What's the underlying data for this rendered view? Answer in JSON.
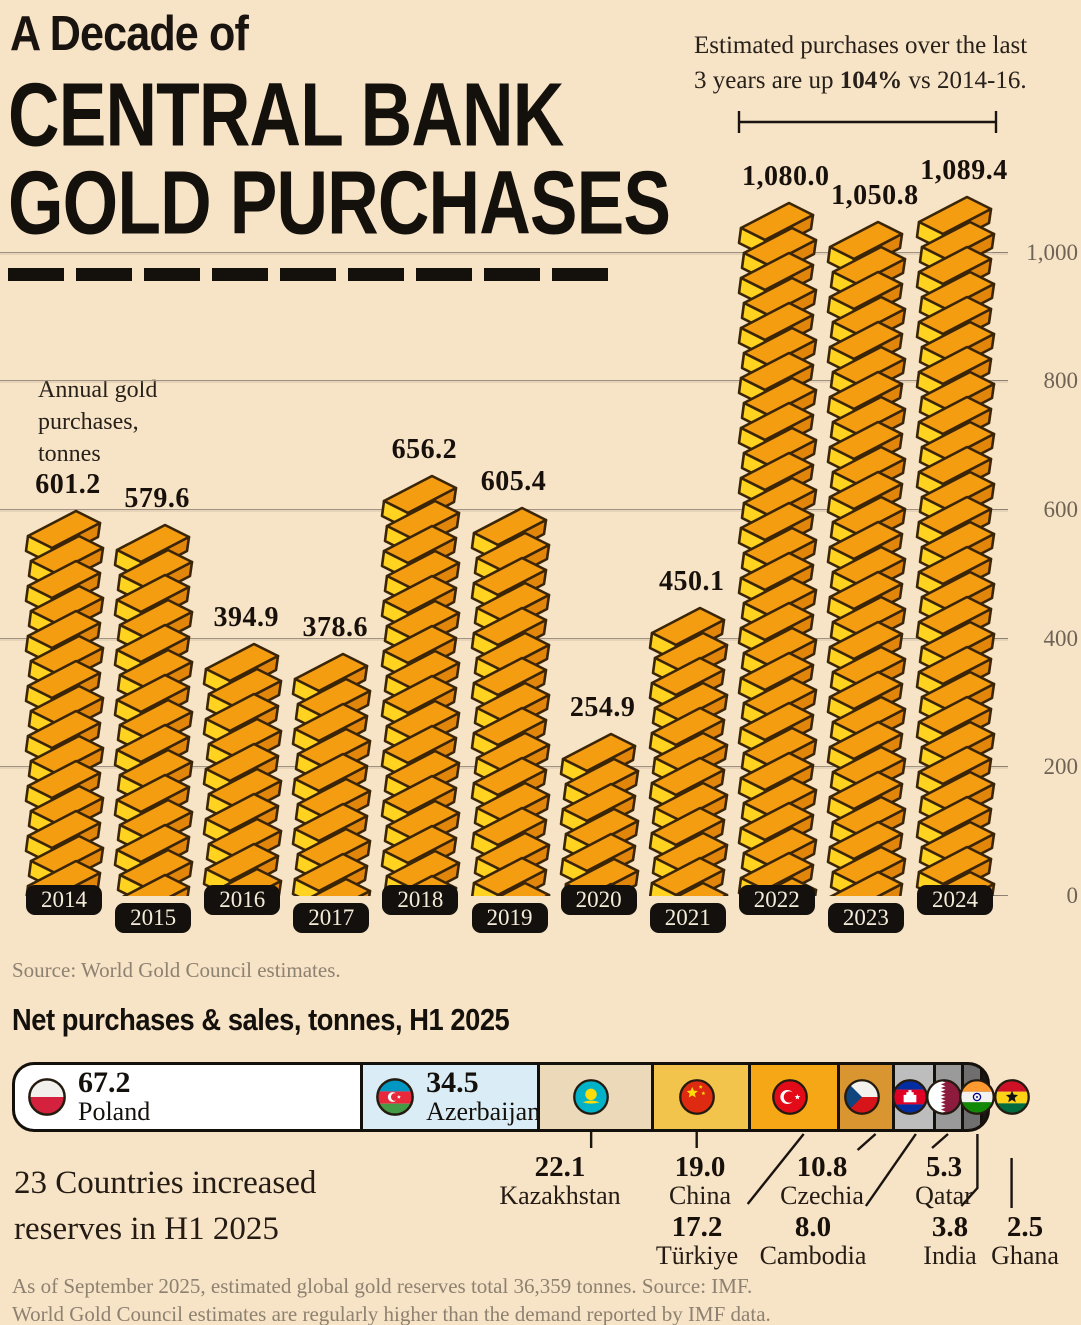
{
  "header": {
    "kicker": "A Decade of",
    "title_line1": "CENTRAL BANK",
    "title_line2": "GOLD PURCHASES"
  },
  "chart_data": [
    {
      "id": "annual-gold-purchases",
      "type": "bar",
      "title": "A Decade of Central Bank Gold Purchases",
      "ylabel": "Annual gold purchases, tonnes",
      "ylabel_lines": [
        "Annual gold",
        "purchases,",
        "tonnes"
      ],
      "xlabel": "",
      "categories": [
        "2014",
        "2015",
        "2016",
        "2017",
        "2018",
        "2019",
        "2020",
        "2021",
        "2022",
        "2023",
        "2024"
      ],
      "values": [
        601.2,
        579.6,
        394.9,
        378.6,
        656.2,
        605.4,
        254.9,
        450.1,
        1080.0,
        1050.8,
        1089.4
      ],
      "value_labels": [
        "601.2",
        "579.6",
        "394.9",
        "378.6",
        "656.2",
        "605.4",
        "254.9",
        "450.1",
        "1,080.0",
        "1,050.8",
        "1,089.4"
      ],
      "ytick_labels": [
        "0",
        "200",
        "400",
        "600",
        "800",
        "1,000"
      ],
      "ytick_values": [
        0,
        200,
        400,
        600,
        800,
        1000
      ],
      "ylim": [
        0,
        1130
      ],
      "grid": "horizontal",
      "legend": "none",
      "bar_style": "stacked-gold-ingots",
      "annotation": {
        "line1": "Estimated purchases over the last",
        "line2_prefix": "3 years are up ",
        "line2_bold": "104%",
        "line2_suffix": " vs 2014-16.",
        "bracket_years": [
          "2022",
          "2024"
        ]
      },
      "source": "Source: World Gold Council estimates."
    },
    {
      "id": "net-purchases-h1-2025",
      "type": "bar",
      "orientation": "horizontal-proportional",
      "title": "Net purchases & sales, tonnes, H1 2025",
      "note_lines": [
        "23 Countries increased",
        "reserves in H1 2025"
      ],
      "countries": [
        {
          "name": "Poland",
          "value": 67.2,
          "label": "67.2",
          "segment_color": "#ffffff",
          "flag": "poland",
          "label_row": 0
        },
        {
          "name": "Azerbaijan",
          "value": 34.5,
          "label": "34.5",
          "segment_color": "#daedf6",
          "flag": "azerbaijan",
          "label_row": 0
        },
        {
          "name": "Kazakhstan",
          "value": 22.1,
          "label": "22.1",
          "segment_color": "#ecd9ba",
          "flag": "kazakhstan",
          "label_row": 1
        },
        {
          "name": "China",
          "value": 19.0,
          "label": "19.0",
          "segment_color": "#f2c44b",
          "flag": "china",
          "label_row": 1
        },
        {
          "name": "Türkiye",
          "value": 17.2,
          "label": "17.2",
          "segment_color": "#f5a716",
          "flag": "turkiye",
          "label_row": 2
        },
        {
          "name": "Czechia",
          "value": 10.8,
          "label": "10.8",
          "segment_color": "#d9952f",
          "flag": "czechia",
          "label_row": 1
        },
        {
          "name": "Cambodia",
          "value": 8.0,
          "label": "8.0",
          "segment_color": "#bdbdbd",
          "flag": "cambodia",
          "label_row": 2
        },
        {
          "name": "Qatar",
          "value": 5.3,
          "label": "5.3",
          "segment_color": "#9a9a9a",
          "flag": "qatar",
          "label_row": 1
        },
        {
          "name": "India",
          "value": 3.8,
          "label": "3.8",
          "segment_color": "#6f6f6f",
          "flag": "india",
          "label_row": 2
        },
        {
          "name": "Ghana",
          "value": 2.5,
          "label": "2.5",
          "segment_color": "#1a1614",
          "flag": "ghana",
          "label_row": 2
        }
      ]
    }
  ],
  "footer_lines": [
    "As of September 2025, estimated global gold reserves total 36,359 tonnes. Source: IMF.",
    "World Gold Council estimates are regularly higher than the demand reported by IMF data."
  ],
  "colors": {
    "background": "#f7e3c6",
    "ingot_yellow": "#ffd31f",
    "ingot_top_orange": "#f59d11",
    "ingot_side_orange": "#e1860b",
    "ingot_outline": "#3b2507",
    "ink": "#14100c",
    "muted_text": "#8d8171",
    "axis_text": "#6e6455",
    "year_pill_bg": "#14100d",
    "year_pill_text": "#f4ecd9"
  }
}
